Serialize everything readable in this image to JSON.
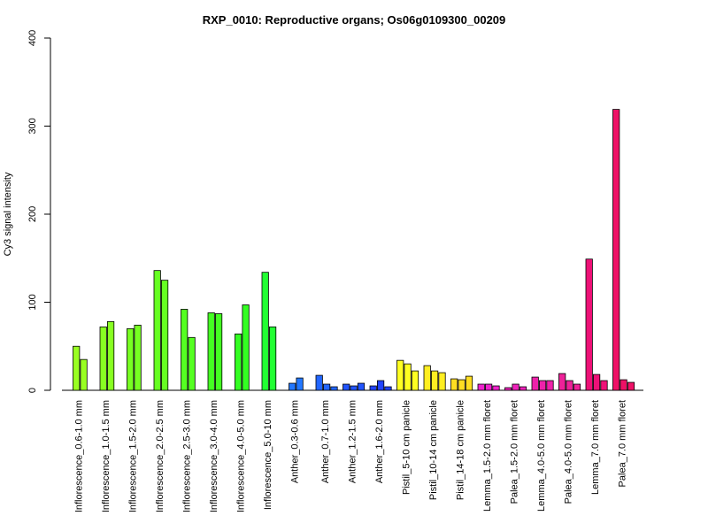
{
  "chart_data": {
    "type": "bar",
    "title": "RXP_0010: Reproductive organs; Os06g0109300_00209",
    "ylabel": "Cy3 signal intensity",
    "xlabel": "",
    "ylim": [
      0,
      400
    ],
    "yticks": [
      0,
      100,
      200,
      300,
      400
    ],
    "groups": [
      {
        "label": "Inflorescence_0.6-1.0 mm",
        "color": "#99ff22",
        "values": [
          50,
          35
        ]
      },
      {
        "label": "Inflorescence_1.0-1.5 mm",
        "color": "#88ff22",
        "values": [
          72,
          78
        ]
      },
      {
        "label": "Inflorescence_1.5-2.0 mm",
        "color": "#77ff22",
        "values": [
          70,
          74
        ]
      },
      {
        "label": "Inflorescence_2.0-2.5 mm",
        "color": "#66ff22",
        "values": [
          136,
          125
        ]
      },
      {
        "label": "Inflorescence_2.5-3.0 mm",
        "color": "#55ff22",
        "values": [
          92,
          60
        ]
      },
      {
        "label": "Inflorescence_3.0-4.0 mm",
        "color": "#44ff22",
        "values": [
          88,
          87
        ]
      },
      {
        "label": "Inflorescence_4.0-5.0 mm",
        "color": "#33ff22",
        "values": [
          64,
          97
        ]
      },
      {
        "label": "Inflorescence_5.0-10 mm",
        "color": "#22ff33",
        "values": [
          134,
          72
        ]
      },
      {
        "label": "Anther_0.3-0.6 mm",
        "color": "#2277ff",
        "values": [
          8,
          14
        ]
      },
      {
        "label": "Anther_0.7-1.0 mm",
        "color": "#2266ff",
        "values": [
          17,
          7,
          4
        ]
      },
      {
        "label": "Anther_1.2-1.5 mm",
        "color": "#2255ff",
        "values": [
          7,
          5,
          8
        ]
      },
      {
        "label": "Anther_1.6-2.0 mm",
        "color": "#2244ff",
        "values": [
          5,
          11,
          4
        ]
      },
      {
        "label": "Pistil_5-10 cm panicle",
        "color": "#ffff22",
        "values": [
          34,
          30,
          22
        ]
      },
      {
        "label": "Pistil_10-14 cm panicle",
        "color": "#ffee22",
        "values": [
          28,
          22,
          20
        ]
      },
      {
        "label": "Pistil_14-18 cm panicle",
        "color": "#ffdd22",
        "values": [
          13,
          12,
          16
        ]
      },
      {
        "label": "Lemma_1.5-2.0 mm floret",
        "color": "#ee22cc",
        "values": [
          7,
          7,
          5
        ]
      },
      {
        "label": "Palea_1.5-2.0 mm floret",
        "color": "#ee22bb",
        "values": [
          3,
          7,
          4
        ]
      },
      {
        "label": "Lemma_4.0-5.0 mm floret",
        "color": "#ee22aa",
        "values": [
          15,
          11,
          11
        ]
      },
      {
        "label": "Palea_4.0-5.0 mm floret",
        "color": "#ee2299",
        "values": [
          19,
          11,
          7
        ]
      },
      {
        "label": "Lemma_7.0 mm floret",
        "color": "#ee1177",
        "values": [
          149,
          18,
          11
        ]
      },
      {
        "label": "Palea_7.0 mm floret",
        "color": "#ee1166",
        "values": [
          319,
          12,
          9
        ]
      }
    ]
  }
}
